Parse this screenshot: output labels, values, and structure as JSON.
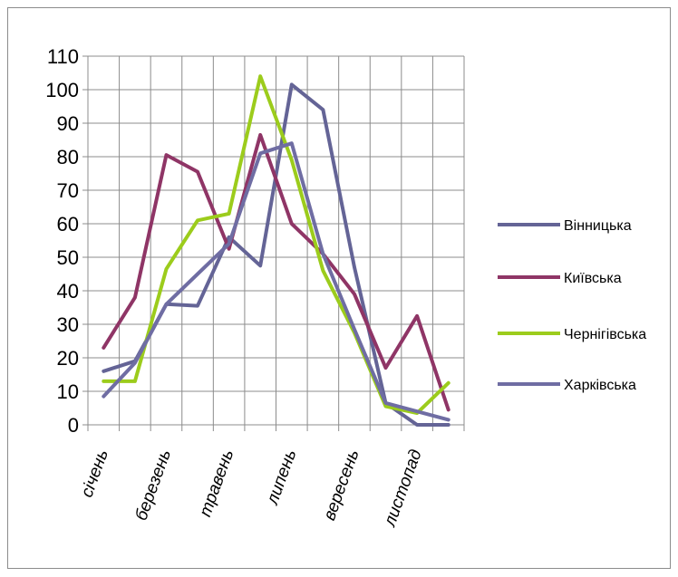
{
  "chart_data": {
    "type": "line",
    "title": "",
    "xlabel": "",
    "ylabel": "",
    "ylim": [
      0,
      110
    ],
    "ytick_step": 10,
    "grid": true,
    "legend_position": "right",
    "x": [
      "січень",
      "",
      "березень",
      "",
      "травень",
      "",
      "липень",
      "",
      "вересень",
      "",
      "листопад",
      ""
    ],
    "series": [
      {
        "name": "Вінницька",
        "color": "#646496",
        "values": [
          16,
          19,
          36,
          35.5,
          56,
          47.5,
          101.5,
          94,
          47,
          6.5,
          0,
          0
        ]
      },
      {
        "name": "Київська",
        "color": "#8f3566",
        "values": [
          23,
          38,
          80.5,
          75.5,
          52.5,
          86.5,
          60,
          51,
          39,
          17,
          32.5,
          4.5
        ]
      },
      {
        "name": "Чернігівська",
        "color": "#9ccc1c",
        "values": [
          13,
          13,
          46.5,
          61,
          63,
          104,
          79,
          46,
          27.5,
          5.5,
          3.5,
          12.5
        ]
      },
      {
        "name": "Харківська",
        "color": "#6f6da3",
        "values": [
          8.5,
          18.5,
          36,
          45,
          54,
          81,
          84,
          51,
          28.5,
          6.5,
          4,
          1.5
        ]
      }
    ]
  }
}
